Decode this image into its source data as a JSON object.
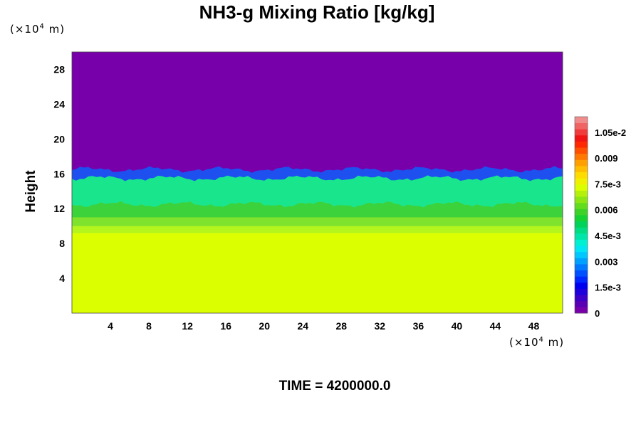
{
  "chart_data": {
    "type": "heatmap",
    "title": "NH3-g Mixing Ratio [kg/kg]",
    "xlabel": "",
    "ylabel": "Height",
    "x_unit": "(×10",
    "x_unit_exp": "4",
    "x_unit_suffix": " m)",
    "y_unit": "(×10",
    "y_unit_exp": "4",
    "y_unit_suffix": " m)",
    "xlim": [
      0,
      51
    ],
    "ylim": [
      0,
      30
    ],
    "x_ticks": [
      4,
      8,
      12,
      16,
      20,
      24,
      28,
      32,
      36,
      40,
      44,
      48
    ],
    "y_ticks": [
      4,
      8,
      12,
      16,
      20,
      24,
      28
    ],
    "layers": [
      {
        "from_height": 0,
        "to_height": 9.2,
        "value": 0.0077,
        "color": "#dcff00"
      },
      {
        "from_height": 9.2,
        "to_height": 10.0,
        "value": 0.0069,
        "color": "#b4f51e"
      },
      {
        "from_height": 10.0,
        "to_height": 11.0,
        "value": 0.0063,
        "color": "#7fe32d"
      },
      {
        "from_height": 11.0,
        "to_height": 12.5,
        "value": 0.0057,
        "color": "#3cd23c"
      },
      {
        "from_height": 12.5,
        "to_height": 15.5,
        "value": 0.0045,
        "color": "#19e68c"
      },
      {
        "from_height": 15.5,
        "to_height": 16.5,
        "value": 0.0015,
        "color": "#1e50f0"
      },
      {
        "from_height": 16.5,
        "to_height": 30,
        "value": 0,
        "color": "#7800aa"
      }
    ],
    "colorbar": {
      "labels": [
        "1.05e-2",
        "0.009",
        "7.5e-3",
        "0.006",
        "4.5e-3",
        "0.003",
        "1.5e-3",
        "0"
      ],
      "label_values": [
        0.0105,
        0.009,
        0.0075,
        0.006,
        0.0045,
        0.003,
        0.0015,
        0
      ],
      "range": [
        0,
        0.0114
      ],
      "colors": [
        "#7800aa",
        "#5a00b4",
        "#3c00c8",
        "#1e00dc",
        "#0000f0",
        "#0028ff",
        "#0050ff",
        "#0078ff",
        "#00a0ff",
        "#00c8ff",
        "#00e6f5",
        "#00f0d2",
        "#00e6aa",
        "#00dc82",
        "#00d25a",
        "#14d232",
        "#3cd228",
        "#64dc1e",
        "#8ce614",
        "#b4f00a",
        "#dcff00",
        "#f0f000",
        "#ffdc00",
        "#ffbe00",
        "#ffa000",
        "#ff7800",
        "#ff5000",
        "#ff2800",
        "#f01414",
        "#f03c3c",
        "#f06464",
        "#f08c8c"
      ]
    },
    "grid": false,
    "legend": "colorbar-right"
  },
  "time_label": "TIME = 4200000.0"
}
